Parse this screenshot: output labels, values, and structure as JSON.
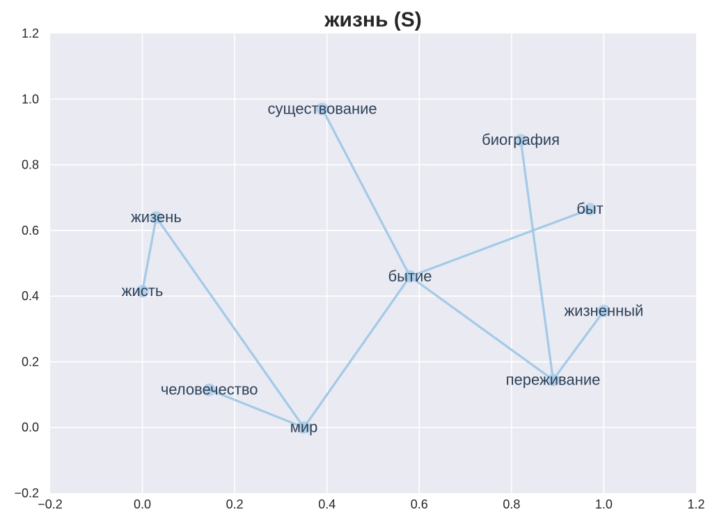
{
  "chart_data": {
    "type": "network-scatter",
    "title": "жизнь (S)",
    "xlabel": "",
    "ylabel": "",
    "xlim": [
      -0.2,
      1.2
    ],
    "ylim": [
      -0.2,
      1.2
    ],
    "x_ticks": [
      -0.2,
      0.0,
      0.2,
      0.4,
      0.6,
      0.8,
      1.0,
      1.2
    ],
    "x_tick_labels": [
      "−0.2",
      "0.0",
      "0.2",
      "0.4",
      "0.6",
      "0.8",
      "1.0",
      "1.2"
    ],
    "y_ticks": [
      -0.2,
      0.0,
      0.2,
      0.4,
      0.6,
      0.8,
      1.0,
      1.2
    ],
    "y_tick_labels": [
      "−0.2",
      "0.0",
      "0.2",
      "0.4",
      "0.6",
      "0.8",
      "1.0",
      "1.2"
    ],
    "grid": true,
    "colors": {
      "background": "#eaeaf2",
      "grid": "#ffffff",
      "line": "#a3cae7",
      "point": "#a3cae7",
      "label": "#2e4259"
    },
    "points": [
      {
        "id": "sushchestvovanie",
        "label": "существование",
        "x": 0.39,
        "y": 0.97
      },
      {
        "id": "biografiya",
        "label": "биография",
        "x": 0.82,
        "y": 0.875
      },
      {
        "id": "byt",
        "label": "быт",
        "x": 0.97,
        "y": 0.665
      },
      {
        "id": "zhizen",
        "label": "жизень",
        "x": 0.03,
        "y": 0.64
      },
      {
        "id": "bytie",
        "label": "бытие",
        "x": 0.58,
        "y": 0.46
      },
      {
        "id": "zhist",
        "label": "жисть",
        "x": 0.0,
        "y": 0.415
      },
      {
        "id": "zhiznennyi",
        "label": "жизненный",
        "x": 1.0,
        "y": 0.355
      },
      {
        "id": "perezhivanie",
        "label": "переживание",
        "x": 0.89,
        "y": 0.145
      },
      {
        "id": "chelovechestvo",
        "label": "человечество",
        "x": 0.145,
        "y": 0.115
      },
      {
        "id": "mir",
        "label": "мир",
        "x": 0.35,
        "y": 0.0
      }
    ],
    "edges": [
      [
        "zhist",
        "zhizen"
      ],
      [
        "zhizen",
        "mir"
      ],
      [
        "chelovechestvo",
        "mir"
      ],
      [
        "mir",
        "bytie"
      ],
      [
        "bytie",
        "sushchestvovanie"
      ],
      [
        "bytie",
        "byt"
      ],
      [
        "bytie",
        "perezhivanie"
      ],
      [
        "perezhivanie",
        "biografiya"
      ],
      [
        "perezhivanie",
        "zhiznennyi"
      ]
    ]
  }
}
